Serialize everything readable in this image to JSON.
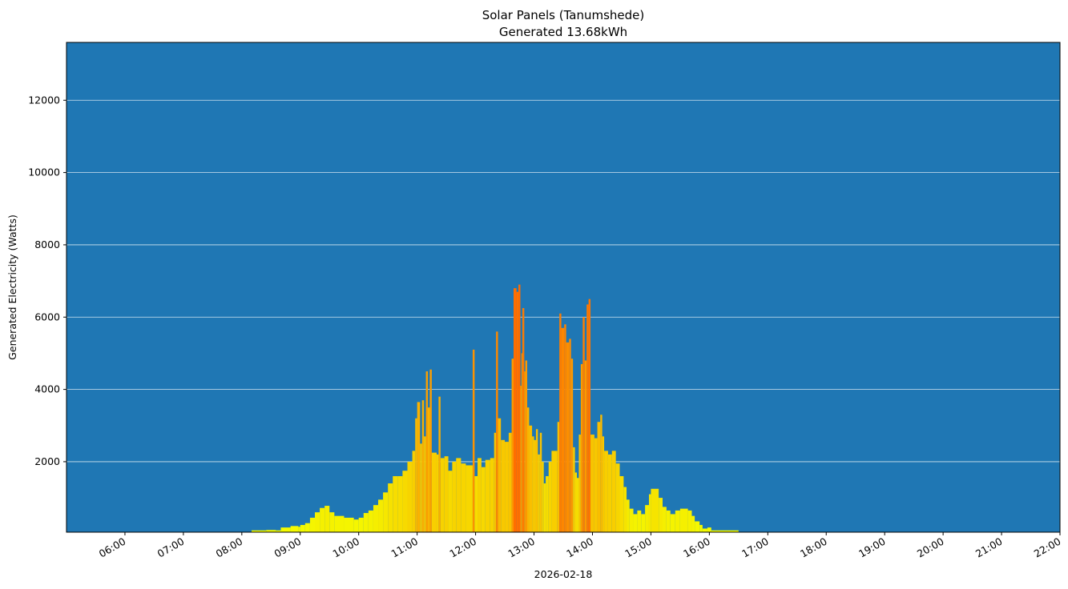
{
  "chart_data": {
    "type": "bar",
    "title": "Solar Panels (Tanumshede)",
    "subtitle": "Generated 13.68kWh",
    "xlabel": "2026-02-18",
    "ylabel": "Generated Electricity (Watts)",
    "xlim": [
      "05:00",
      "22:00"
    ],
    "ylim": [
      50,
      13600
    ],
    "xticks": [
      "06:00",
      "07:00",
      "08:00",
      "09:00",
      "10:00",
      "11:00",
      "12:00",
      "13:00",
      "14:00",
      "15:00",
      "16:00",
      "17:00",
      "18:00",
      "19:00",
      "20:00",
      "21:00",
      "22:00"
    ],
    "yticks": [
      2000,
      4000,
      6000,
      8000,
      10000,
      12000
    ],
    "grid": "horizontal",
    "background_color": "#1f77b4",
    "color_low": "#f4ff00",
    "color_high": "#ff6a00",
    "points": [
      [
        "07:30",
        40
      ],
      [
        "07:48",
        50
      ],
      [
        "08:10",
        100
      ],
      [
        "08:25",
        110
      ],
      [
        "08:35",
        100
      ],
      [
        "08:40",
        180
      ],
      [
        "08:50",
        220
      ],
      [
        "08:58",
        200
      ],
      [
        "09:00",
        250
      ],
      [
        "09:05",
        300
      ],
      [
        "09:10",
        450
      ],
      [
        "09:15",
        600
      ],
      [
        "09:20",
        720
      ],
      [
        "09:25",
        780
      ],
      [
        "09:30",
        600
      ],
      [
        "09:35",
        500
      ],
      [
        "09:45",
        450
      ],
      [
        "09:55",
        400
      ],
      [
        "10:00",
        450
      ],
      [
        "10:05",
        580
      ],
      [
        "10:10",
        650
      ],
      [
        "10:15",
        800
      ],
      [
        "10:20",
        950
      ],
      [
        "10:25",
        1150
      ],
      [
        "10:30",
        1400
      ],
      [
        "10:35",
        1600
      ],
      [
        "10:40",
        1600
      ],
      [
        "10:45",
        1750
      ],
      [
        "10:50",
        2000
      ],
      [
        "10:55",
        2300
      ],
      [
        "10:58",
        3200
      ],
      [
        "11:00",
        3650
      ],
      [
        "11:03",
        2500
      ],
      [
        "11:05",
        3700
      ],
      [
        "11:07",
        2700
      ],
      [
        "11:09",
        4500
      ],
      [
        "11:11",
        3500
      ],
      [
        "11:13",
        4550
      ],
      [
        "11:15",
        2250
      ],
      [
        "11:20",
        2200
      ],
      [
        "11:22",
        3800
      ],
      [
        "11:24",
        2100
      ],
      [
        "11:28",
        2150
      ],
      [
        "11:32",
        1750
      ],
      [
        "11:36",
        2000
      ],
      [
        "11:40",
        2100
      ],
      [
        "11:45",
        1950
      ],
      [
        "11:50",
        1900
      ],
      [
        "11:57",
        5100
      ],
      [
        "11:59",
        1600
      ],
      [
        "12:02",
        2100
      ],
      [
        "12:06",
        1850
      ],
      [
        "12:10",
        2050
      ],
      [
        "12:15",
        2100
      ],
      [
        "12:19",
        2800
      ],
      [
        "12:21",
        5600
      ],
      [
        "12:23",
        3200
      ],
      [
        "12:26",
        2600
      ],
      [
        "12:30",
        2550
      ],
      [
        "12:34",
        2800
      ],
      [
        "12:37",
        4850
      ],
      [
        "12:39",
        6800
      ],
      [
        "12:42",
        6700
      ],
      [
        "12:44",
        6900
      ],
      [
        "12:46",
        4100
      ],
      [
        "12:47",
        5000
      ],
      [
        "12:48",
        6250
      ],
      [
        "12:50",
        4500
      ],
      [
        "12:51",
        4800
      ],
      [
        "12:53",
        3500
      ],
      [
        "12:55",
        3000
      ],
      [
        "12:58",
        2700
      ],
      [
        "13:00",
        2600
      ],
      [
        "13:02",
        2900
      ],
      [
        "13:04",
        2200
      ],
      [
        "13:06",
        2800
      ],
      [
        "13:08",
        2000
      ],
      [
        "13:10",
        1400
      ],
      [
        "13:12",
        1600
      ],
      [
        "13:15",
        2000
      ],
      [
        "13:18",
        2300
      ],
      [
        "13:24",
        3100
      ],
      [
        "13:26",
        6100
      ],
      [
        "13:28",
        5700
      ],
      [
        "13:31",
        5800
      ],
      [
        "13:33",
        5300
      ],
      [
        "13:36",
        5400
      ],
      [
        "13:38",
        4850
      ],
      [
        "13:40",
        2400
      ],
      [
        "13:42",
        1700
      ],
      [
        "13:44",
        1550
      ],
      [
        "13:46",
        2750
      ],
      [
        "13:48",
        4700
      ],
      [
        "13:50",
        6000
      ],
      [
        "13:52",
        4800
      ],
      [
        "13:54",
        6350
      ],
      [
        "13:56",
        6500
      ],
      [
        "13:58",
        2750
      ],
      [
        "14:02",
        2650
      ],
      [
        "14:05",
        3100
      ],
      [
        "14:08",
        3300
      ],
      [
        "14:10",
        2700
      ],
      [
        "14:12",
        2300
      ],
      [
        "14:16",
        2200
      ],
      [
        "14:20",
        2300
      ],
      [
        "14:24",
        1950
      ],
      [
        "14:28",
        1600
      ],
      [
        "14:32",
        1300
      ],
      [
        "14:35",
        950
      ],
      [
        "14:38",
        700
      ],
      [
        "14:42",
        550
      ],
      [
        "14:46",
        650
      ],
      [
        "14:50",
        550
      ],
      [
        "14:54",
        800
      ],
      [
        "14:58",
        1100
      ],
      [
        "15:00",
        1250
      ],
      [
        "15:08",
        1000
      ],
      [
        "15:12",
        750
      ],
      [
        "15:16",
        650
      ],
      [
        "15:20",
        550
      ],
      [
        "15:25",
        650
      ],
      [
        "15:30",
        700
      ],
      [
        "15:38",
        650
      ],
      [
        "15:42",
        500
      ],
      [
        "15:45",
        350
      ],
      [
        "15:50",
        250
      ],
      [
        "15:53",
        150
      ],
      [
        "15:58",
        180
      ],
      [
        "16:02",
        100
      ],
      [
        "16:30",
        60
      ],
      [
        "16:40",
        0
      ]
    ]
  }
}
